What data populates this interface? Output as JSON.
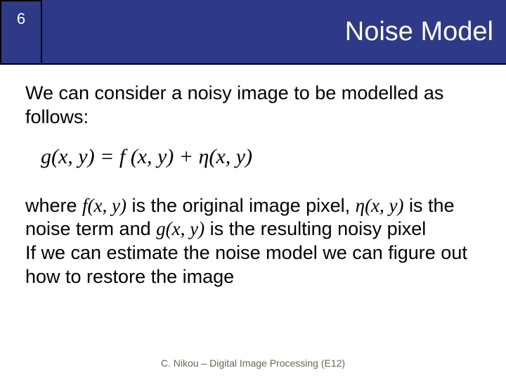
{
  "slide": {
    "page_number": "6",
    "title": "Noise Model",
    "intro": "We can consider a noisy image to be modelled as follows:",
    "equation": "g(x, y) = f (x, y) + η(x, y)",
    "explain_prefix": "where ",
    "fxy": "f(x, y)",
    "explain_mid1": " is the original image pixel, ",
    "etay": "η(x, y)",
    "explain_mid2": " is the noise term and ",
    "gxy": "g(x, y)",
    "explain_end": " is the resulting noisy pixel",
    "explain2": "If we can estimate the noise model we can figure out how to restore the image",
    "footer": "C. Nikou – Digital Image Processing (E12)"
  },
  "style": {
    "header_bg": "#2e3a87",
    "header_fg": "#ffffff",
    "body_bg": "#ffffff",
    "text_color": "#000000",
    "footer_color": "#666655",
    "title_fontsize": 38,
    "body_fontsize": 27,
    "equation_fontsize": 30,
    "footer_fontsize": 14
  }
}
